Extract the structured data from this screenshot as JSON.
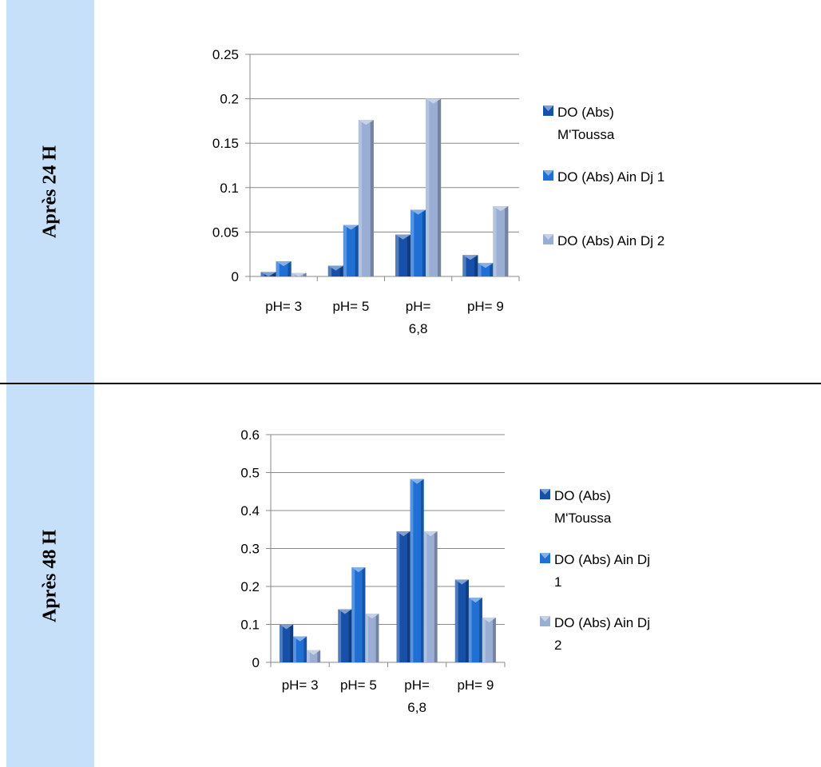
{
  "panels": [
    {
      "label": "Après 24 H"
    },
    {
      "label": "Après 48 H"
    }
  ],
  "colors": {
    "sidebar": "#c5e0f8",
    "series": [
      "#1750a8",
      "#1f6fd4",
      "#9aaed4"
    ],
    "grid": "#888888"
  },
  "chart_data": [
    {
      "type": "bar",
      "categories": [
        "pH= 3",
        "pH= 5",
        "pH= 6,8",
        "pH= 9"
      ],
      "category_lines": [
        [
          "pH= 3"
        ],
        [
          "pH= 5"
        ],
        [
          "pH=",
          "6,8"
        ],
        [
          "pH= 9"
        ]
      ],
      "series": [
        {
          "name": "DO (Abs) M'Toussa",
          "legend_lines": [
            "DO (Abs)",
            "M'Toussa"
          ],
          "values": [
            0.005,
            0.012,
            0.047,
            0.024
          ]
        },
        {
          "name": "DO (Abs) Ain Dj 1",
          "legend_lines": [
            "DO (Abs) Ain Dj 1"
          ],
          "values": [
            0.017,
            0.058,
            0.075,
            0.015
          ]
        },
        {
          "name": "DO (Abs) Ain Dj 2",
          "legend_lines": [
            "DO (Abs) Ain Dj 2"
          ],
          "values": [
            0.004,
            0.176,
            0.2,
            0.079
          ]
        }
      ],
      "ylim": [
        0,
        0.25
      ],
      "yticks": [
        "0",
        "0.05",
        "0.1",
        "0.15",
        "0.2",
        "0.25"
      ],
      "grid": true,
      "legend": "right"
    },
    {
      "type": "bar",
      "categories": [
        "pH= 3",
        "pH= 5",
        "pH= 6,8",
        "pH= 9"
      ],
      "category_lines": [
        [
          "pH= 3"
        ],
        [
          "pH= 5"
        ],
        [
          "pH=",
          "6,8"
        ],
        [
          "pH= 9"
        ]
      ],
      "series": [
        {
          "name": "DO (Abs) M'Toussa",
          "legend_lines": [
            "DO (Abs)",
            "M'Toussa"
          ],
          "values": [
            0.1,
            0.14,
            0.345,
            0.218
          ]
        },
        {
          "name": "DO (Abs) Ain Dj 1",
          "legend_lines": [
            "DO (Abs) Ain Dj",
            "1"
          ],
          "values": [
            0.068,
            0.25,
            0.483,
            0.17
          ]
        },
        {
          "name": "DO (Abs) Ain Dj 2",
          "legend_lines": [
            "DO (Abs) Ain Dj",
            "2"
          ],
          "values": [
            0.032,
            0.128,
            0.345,
            0.118
          ]
        }
      ],
      "ylim": [
        0,
        0.6
      ],
      "yticks": [
        "0",
        "0.1",
        "0.2",
        "0.3",
        "0.4",
        "0.5",
        "0.6"
      ],
      "grid": true,
      "legend": "right"
    }
  ]
}
